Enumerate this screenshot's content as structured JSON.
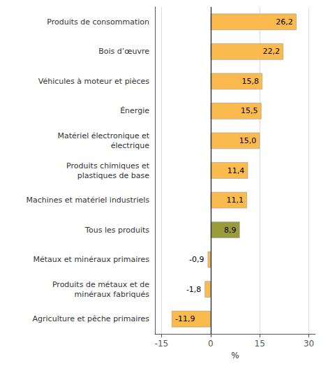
{
  "chart_data": {
    "type": "bar",
    "orientation": "horizontal",
    "categories": [
      "Produits de consommation",
      "Bois d’œuvre",
      "Véhicules à moteur et pièces",
      "Énergie",
      "Matériel électronique et\nélectrique",
      "Produits chimiques et\nplastiques de base",
      "Machines et matériel industriels",
      "Tous les produits",
      "Métaux et minéraux primaires",
      "Produits de métaux et de\nminéraux fabriqués",
      "Agriculture et pêche primaires"
    ],
    "values": [
      26.2,
      22.2,
      15.8,
      15.5,
      15.0,
      11.4,
      11.1,
      8.9,
      -0.9,
      -1.8,
      -11.9
    ],
    "value_labels": [
      "26,2",
      "22,2",
      "15,8",
      "15,5",
      "15,0",
      "11,4",
      "11,1",
      "8,9",
      "-0,9",
      "-1,8",
      "-11,9"
    ],
    "colors": [
      "#FBBA4E",
      "#FBBA4E",
      "#FBBA4E",
      "#FBBA4E",
      "#FBBA4E",
      "#FBBA4E",
      "#FBBA4E",
      "#9B9B3C",
      "#FBBA4E",
      "#FBBA4E",
      "#FBBA4E"
    ],
    "xlabel": "%",
    "xlim": [
      -17,
      32
    ],
    "xticks": [
      -15,
      0,
      15,
      30
    ],
    "grid": true,
    "data_labels": true
  }
}
